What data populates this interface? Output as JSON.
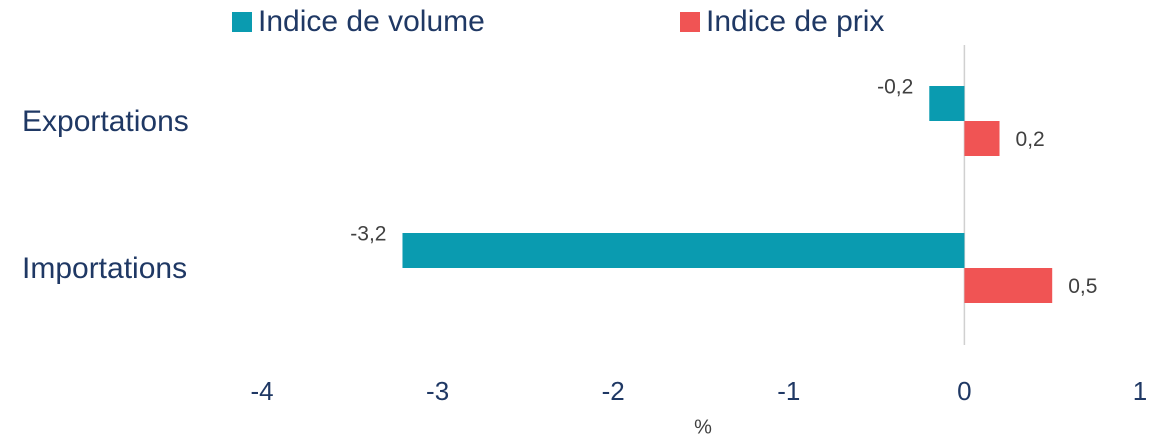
{
  "chart_data": {
    "type": "hbar",
    "categories": [
      "Exportations",
      "Importations"
    ],
    "series": [
      {
        "name": "Indice de volume",
        "color": "#0a9bb0",
        "values": [
          -0.2,
          -3.2
        ],
        "value_labels": [
          "-0,2",
          "-3,2"
        ]
      },
      {
        "name": "Indice de prix",
        "color": "#f05454",
        "values": [
          0.2,
          0.5
        ],
        "value_labels": [
          "0,2",
          "0,5"
        ]
      }
    ],
    "xlim": [
      -4,
      1
    ],
    "xticks": [
      -4,
      -3,
      -2,
      -1,
      0,
      1
    ],
    "xlabel": "%"
  }
}
